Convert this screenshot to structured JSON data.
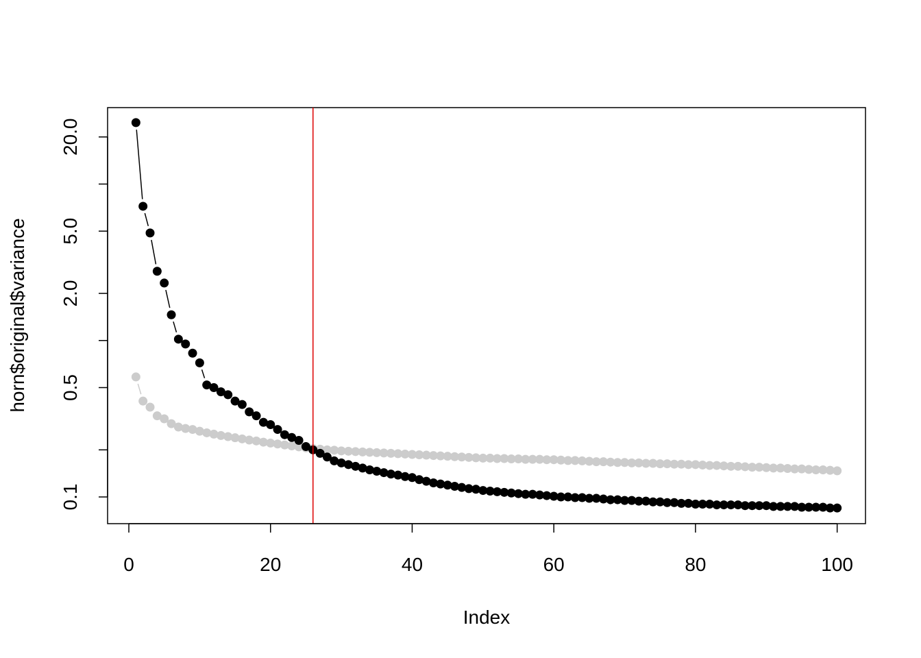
{
  "chart_data": {
    "type": "line",
    "title": "",
    "xlabel": "Index",
    "ylabel": "horn$original$variance",
    "y_scale": "log",
    "xlim": [
      -3,
      104
    ],
    "ylim": [
      0.0675,
      30.8
    ],
    "x_ticks": [
      0,
      20,
      40,
      60,
      80,
      100
    ],
    "x_tick_labels": [
      "0",
      "20",
      "40",
      "60",
      "80",
      "100"
    ],
    "y_ticks": [
      0.1,
      0.2,
      0.5,
      1,
      2,
      5,
      10,
      20
    ],
    "y_tick_labels": [
      {
        "value": 0.1,
        "label": "0.1"
      },
      {
        "value": 0.5,
        "label": "0.5"
      },
      {
        "value": 2,
        "label": "2.0"
      },
      {
        "value": 5,
        "label": "5.0"
      },
      {
        "value": 20,
        "label": "20.0"
      }
    ],
    "grid": false,
    "vline": {
      "x": 26,
      "color": "#DD0000"
    },
    "series": [
      {
        "color": "#000000",
        "values": [
          24.7,
          7.21,
          4.87,
          2.77,
          2.33,
          1.46,
          1.02,
          0.95,
          0.83,
          0.72,
          0.52,
          0.5,
          0.47,
          0.45,
          0.41,
          0.39,
          0.35,
          0.33,
          0.3,
          0.29,
          0.27,
          0.25,
          0.24,
          0.23,
          0.21,
          0.2,
          0.19,
          0.18,
          0.17,
          0.165,
          0.161,
          0.157,
          0.153,
          0.149,
          0.146,
          0.143,
          0.14,
          0.138,
          0.135,
          0.133,
          0.129,
          0.126,
          0.123,
          0.121,
          0.119,
          0.117,
          0.115,
          0.113,
          0.112,
          0.11,
          0.109,
          0.108,
          0.107,
          0.106,
          0.105,
          0.104,
          0.104,
          0.103,
          0.102,
          0.101,
          0.1,
          0.1,
          0.099,
          0.099,
          0.098,
          0.098,
          0.097,
          0.096,
          0.096,
          0.095,
          0.095,
          0.094,
          0.094,
          0.093,
          0.093,
          0.092,
          0.092,
          0.091,
          0.091,
          0.09,
          0.09,
          0.09,
          0.089,
          0.089,
          0.089,
          0.089,
          0.088,
          0.088,
          0.088,
          0.088,
          0.087,
          0.087,
          0.087,
          0.087,
          0.086,
          0.086,
          0.086,
          0.086,
          0.085,
          0.085
        ]
      },
      {
        "color": "#CCCCCC",
        "values": [
          0.585,
          0.41,
          0.375,
          0.33,
          0.316,
          0.294,
          0.28,
          0.274,
          0.27,
          0.263,
          0.257,
          0.252,
          0.247,
          0.243,
          0.239,
          0.235,
          0.231,
          0.228,
          0.224,
          0.221,
          0.218,
          0.215,
          0.212,
          0.209,
          0.206,
          0.204,
          0.202,
          0.2,
          0.199,
          0.197,
          0.196,
          0.195,
          0.194,
          0.193,
          0.192,
          0.191,
          0.19,
          0.189,
          0.188,
          0.187,
          0.186,
          0.185,
          0.184,
          0.183,
          0.182,
          0.181,
          0.18,
          0.179,
          0.178,
          0.177,
          0.177,
          0.176,
          0.176,
          0.175,
          0.175,
          0.174,
          0.174,
          0.174,
          0.173,
          0.173,
          0.172,
          0.171,
          0.171,
          0.17,
          0.169,
          0.168,
          0.168,
          0.167,
          0.166,
          0.166,
          0.165,
          0.165,
          0.164,
          0.164,
          0.163,
          0.163,
          0.162,
          0.162,
          0.161,
          0.161,
          0.16,
          0.159,
          0.159,
          0.158,
          0.157,
          0.157,
          0.156,
          0.155,
          0.155,
          0.154,
          0.153,
          0.153,
          0.152,
          0.151,
          0.151,
          0.15,
          0.149,
          0.149,
          0.148,
          0.147
        ]
      }
    ]
  }
}
